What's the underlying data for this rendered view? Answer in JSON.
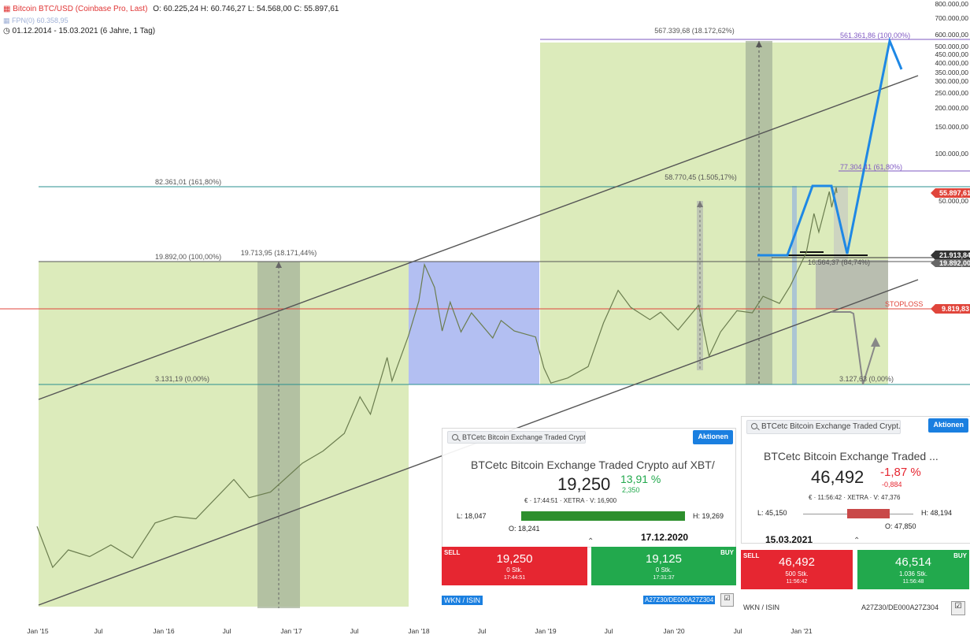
{
  "header": {
    "symbol": "Bitcoin BTC/USD (Coinbase Pro, Last)",
    "ohlc": "O: 60.225,24  H: 60.746,27  L: 54.568,00  C: 55.897,61",
    "subtitle": "FPN(0) 60.358,95",
    "range": "01.12.2014 - 15.03.2021  (6 Jahre, 1 Tag)"
  },
  "chart_data": {
    "type": "line",
    "series": [
      {
        "name": "",
        "values": [
          {
            "x": "2014-12-01",
            "y": 370
          },
          {
            "x": "2015-01-15",
            "y": 200
          },
          {
            "x": "2015-03-01",
            "y": 260
          },
          {
            "x": "2015-05-01",
            "y": 235
          },
          {
            "x": "2015-07-01",
            "y": 280
          },
          {
            "x": "2015-09-01",
            "y": 230
          },
          {
            "x": "2015-11-05",
            "y": 390
          },
          {
            "x": "2016-01-01",
            "y": 430
          },
          {
            "x": "2016-03-01",
            "y": 415
          },
          {
            "x": "2016-06-18",
            "y": 750
          },
          {
            "x": "2016-08-01",
            "y": 570
          },
          {
            "x": "2016-10-01",
            "y": 620
          },
          {
            "x": "2017-01-01",
            "y": 960
          },
          {
            "x": "2017-03-01",
            "y": 1150
          },
          {
            "x": "2017-05-01",
            "y": 1500
          },
          {
            "x": "2017-06-15",
            "y": 2600
          },
          {
            "x": "2017-07-15",
            "y": 2000
          },
          {
            "x": "2017-09-01",
            "y": 4700
          },
          {
            "x": "2017-09-15",
            "y": 3300
          },
          {
            "x": "2017-11-01",
            "y": 6500
          },
          {
            "x": "2017-12-01",
            "y": 11000
          },
          {
            "x": "2017-12-17",
            "y": 19000
          },
          {
            "x": "2018-01-15",
            "y": 13500
          },
          {
            "x": "2018-02-06",
            "y": 7000
          },
          {
            "x": "2018-03-01",
            "y": 10800
          },
          {
            "x": "2018-04-01",
            "y": 6900
          },
          {
            "x": "2018-05-01",
            "y": 9200
          },
          {
            "x": "2018-07-01",
            "y": 6300
          },
          {
            "x": "2018-07-25",
            "y": 8200
          },
          {
            "x": "2018-09-01",
            "y": 7000
          },
          {
            "x": "2018-11-01",
            "y": 6400
          },
          {
            "x": "2018-11-25",
            "y": 4000
          },
          {
            "x": "2018-12-15",
            "y": 3200
          },
          {
            "x": "2019-02-01",
            "y": 3450
          },
          {
            "x": "2019-04-01",
            "y": 4100
          },
          {
            "x": "2019-05-15",
            "y": 7900
          },
          {
            "x": "2019-06-26",
            "y": 12900
          },
          {
            "x": "2019-08-01",
            "y": 10000
          },
          {
            "x": "2019-09-25",
            "y": 8300
          },
          {
            "x": "2019-10-26",
            "y": 9300
          },
          {
            "x": "2019-12-15",
            "y": 7100
          },
          {
            "x": "2020-02-12",
            "y": 10300
          },
          {
            "x": "2020-03-13",
            "y": 4800
          },
          {
            "x": "2020-04-15",
            "y": 6900
          },
          {
            "x": "2020-06-01",
            "y": 9500
          },
          {
            "x": "2020-07-15",
            "y": 9200
          },
          {
            "x": "2020-08-15",
            "y": 11800
          },
          {
            "x": "2020-10-01",
            "y": 10600
          },
          {
            "x": "2020-11-01",
            "y": 13800
          },
          {
            "x": "2020-12-17",
            "y": 22800
          },
          {
            "x": "2021-01-08",
            "y": 41000
          },
          {
            "x": "2021-01-22",
            "y": 31000
          },
          {
            "x": "2021-02-21",
            "y": 57000
          },
          {
            "x": "2021-02-28",
            "y": 45000
          },
          {
            "x": "2021-03-13",
            "y": 60700
          },
          {
            "x": "2021-03-15",
            "y": 55897.61
          }
        ]
      }
    ],
    "x_ticks": [
      "Jan '15",
      "Jul",
      "Jan '16",
      "Jul",
      "Jan '17",
      "Jul",
      "Jan '18",
      "Jul",
      "Jan '19",
      "Jul",
      "Jan '20",
      "Jul",
      "Jan '21"
    ],
    "y_ticks": [
      "800.000,00",
      "700.000,00",
      "600.000,00",
      "500.000,00",
      "450.000,00",
      "400.000,00",
      "350.000,00",
      "300.000,00",
      "250.000,00",
      "200.000,00",
      "150.000,00",
      "100.000,00",
      "50.000,00"
    ],
    "y_scale": "log",
    "levels": [
      {
        "label": "561.361,86 (100,00%)",
        "color": "#7e57c2"
      },
      {
        "label": "567.339,68 (18.172,62%)",
        "color": "#555"
      },
      {
        "label": "77.304,41 (61,80%)",
        "color": "#7e57c2"
      },
      {
        "label": "82.361,01 (161,80%)",
        "color": "#2a8f8f"
      },
      {
        "label": "58.770,45 (1.505,17%)",
        "color": "#555"
      },
      {
        "label": "19.892,00 (100,00%)",
        "color": "#555"
      },
      {
        "label": "19.713,95 (18.171,44%)",
        "color": "#555"
      },
      {
        "label": "3.131,19 (0,00%)",
        "color": "#555"
      },
      {
        "label": "3.127,63 (0,00%)",
        "color": "#555"
      },
      {
        "label": "16.564,37 (84,74%)",
        "color": "#555"
      }
    ],
    "price_tags": [
      {
        "text": "55.897,61",
        "color": "#e0453b"
      },
      {
        "text": "21.913,84",
        "color": "#333"
      },
      {
        "text": "19.892,00",
        "color": "#555"
      },
      {
        "text": "9.819,83",
        "color": "#e0453b"
      }
    ],
    "stoploss_label": "STOPLOSS"
  },
  "panel1": {
    "search": "BTCetc Bitcoin Exchange Traded Crypt...",
    "button": "Aktionen",
    "title": "BTCetc Bitcoin Exchange Traded Crypto auf XBT/...",
    "price": "19,250",
    "change_pct": "13,91 %",
    "change_abs": "2,350",
    "meta": "€ · 17:44:51 · XETRA · V: 16,900",
    "low": "L: 18,047",
    "high": "H: 19,269",
    "open": "O: 18,241",
    "date": "17.12.2020",
    "sell": {
      "label": "SELL",
      "value": "19,250",
      "size": "0 Stk.",
      "time": "17:44:51"
    },
    "buy": {
      "label": "BUY",
      "value": "19,125",
      "size": "0 Stk.",
      "time": "17:31:37"
    },
    "wkn_label": "WKN / ISIN",
    "wkn_value": "A27Z30/DE000A27Z304"
  },
  "panel2": {
    "search": "BTCetc Bitcoin Exchange Traded Crypt...",
    "button": "Aktionen",
    "title": "BTCetc Bitcoin Exchange Traded ...",
    "price": "46,492",
    "change_pct": "-1,87 %",
    "change_abs": "-0,884",
    "meta": "€ · 11:56:42 · XETRA · V: 47,376",
    "low": "L: 45,150",
    "high": "H: 48,194",
    "open": "O: 47,850",
    "date": "15.03.2021",
    "sell": {
      "label": "SELL",
      "value": "46,492",
      "size": "500 Stk.",
      "time": "11:56:42"
    },
    "buy": {
      "label": "BUY",
      "value": "46,514",
      "size": "1.036 Stk.",
      "time": "11:56:48"
    },
    "wkn_label": "WKN / ISIN",
    "wkn_value": "A27Z30/DE000A27Z304"
  },
  "colors": {
    "zone_green": "#dcebbb",
    "zone_blue": "#b3bff2",
    "zone_dark": "#a6b39a",
    "price_line": "#6b7d4f",
    "trend": "#555555",
    "projection": "#1e88e5",
    "stoploss": "#e0453b",
    "sell": "#e62631",
    "buy": "#22a94d",
    "bar_green": "#2d8f2d",
    "bar_red": "#c94848"
  }
}
